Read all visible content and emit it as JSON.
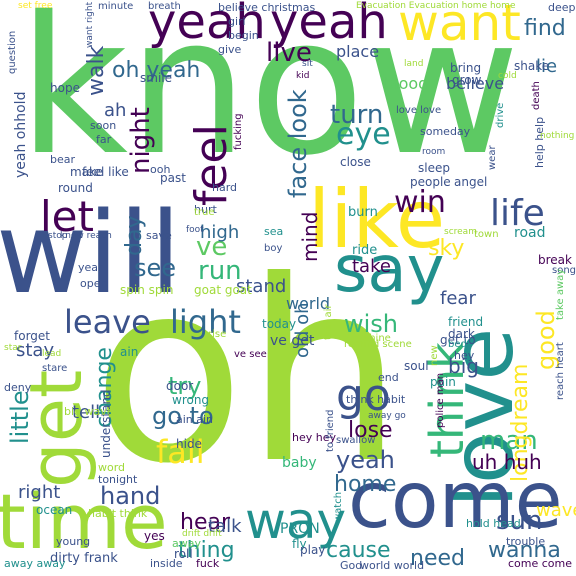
{
  "words": {
    "know": "know",
    "oh": "oh",
    "will": "will",
    "love": "love",
    "come": "come",
    "time": "time",
    "get": "get",
    "like": "like",
    "say": "say",
    "yeah1": "yeah",
    "yeah2": "yeah",
    "want": "want",
    "way": "way",
    "think": "think",
    "feel": "feel",
    "let": "let",
    "go": "go",
    "life": "life",
    "leave": "leave",
    "light": "light",
    "fall": "fall",
    "good": "good",
    "win": "win",
    "eye": "eye",
    "turn": "turn",
    "face_look": "face look",
    "live": "live",
    "night": "night",
    "walk": "walk",
    "oh_yeah": "oh yeah",
    "find": "find",
    "lie": "lie",
    "run": "run",
    "see": "see",
    "ve": "ve",
    "day": "day",
    "high": "high",
    "wish": "wish",
    "go_to": "go to",
    "try": "try",
    "lose": "lose",
    "yeah3": "yeah",
    "home": "home",
    "man": "man",
    "longdream": "longdream",
    "uh_huh": "uh huh",
    "need": "need",
    "wanna": "wanna",
    "cause": "cause",
    "thing": "thing",
    "hear": "hear",
    "hand": "hand",
    "change": "change",
    "little": "little",
    "right": "right",
    "sun": "sun",
    "mind": "mind",
    "take": "take",
    "sky": "sky",
    "stand": "stand",
    "blood": "blood",
    "believe": "believe",
    "place": "place",
    "world": "world",
    "fear": "fear",
    "big": "big",
    "talk": "talk",
    "wave": "wave",
    "old_oh": "old oh",
    "tell": "tell",
    "stay": "stay",
    "ah": "ah",
    "ohhold": "yeah ohhold",
    "baby": "baby",
    "road": "road",
    "burn": "burn",
    "ride": "ride",
    "break": "break",
    "spin_spin": "spin spin",
    "goat_goat": "goat goat",
    "ve_get": "ve get",
    "today": "today",
    "friend": "friend",
    "dark": "dark",
    "get_to": "get to",
    "end": "end",
    "soul": "soul",
    "pain": "pain",
    "understand": "understand",
    "hide": "hide",
    "PRON": "PRON",
    "ocean": "ocean",
    "dirty_frank": "dirty frank",
    "yes": "yes",
    "fly": "fly",
    "play": "play",
    "God": "God",
    "world_world": "world world",
    "trouble": "trouble",
    "come_come": "come come",
    "hold_head": "hold head",
    "inside": "inside",
    "fuck": "fuck",
    "young": "young",
    "roll": "roll",
    "away": "away",
    "away_away": "away away",
    "habit_think": "habit think",
    "big_wave": "big wave",
    "word": "word",
    "tonight": "tonight",
    "ain": "ain",
    "ain_ain": "ain ain",
    "wrong": "wrong",
    "door": "door",
    "hey": "hey",
    "hey_hey": "hey hey",
    "feel_like": "feel like",
    "ooh": "ooh",
    "round": "round",
    "make": "make",
    "bear": "bear",
    "past": "past",
    "hard": "hard",
    "hurt": "hurt",
    "true": "true",
    "save": "save",
    "year": "year",
    "open": "open",
    "sea": "sea",
    "boy": "boy",
    "close": "close",
    "sleep": "sleep",
    "people": "people",
    "angel": "angel",
    "wear": "wear",
    "drive": "drive",
    "death": "death",
    "deep": "deep",
    "help_help": "help help",
    "song": "song",
    "take_away": "take away",
    "town": "town",
    "scream": "scream",
    "shine": "shine",
    "thin_air": "thin air",
    "remind_scene": "remind scene",
    "think_habit": "think habit",
    "bed": "bed",
    "new": "new",
    "police_man": "police man",
    "reach_heart": "reach heart",
    "swallow": "swallow",
    "to_friend": "to friend",
    "away_go": "away go",
    "watch": "watch",
    "forget": "forget",
    "deny": "deny",
    "stare": "stare",
    "lead": "lead",
    "star": "star",
    "rise": "rise",
    "ve_see": "ve see",
    "smile": "smile",
    "hope": "hope",
    "soon": "soon",
    "far": "far",
    "give": "give",
    "girl": "girl",
    "begin": "begin",
    "believe_christmas": "believe christmas",
    "evacuation": "Evacuation Evacuation home home",
    "set_free": "set free",
    "minute": "minute",
    "breath": "breath",
    "question": "question",
    "want_right": "want right",
    "sit": "sit",
    "kid": "kid",
    "land": "land",
    "bring": "bring",
    "grow": "grow",
    "shake": "shake",
    "cold": "cold",
    "nothing": "nothing",
    "room": "room",
    "someday": "someday",
    "love_love": "love love",
    "fucking": "fucking",
    "know_reach": "know reach",
    "stop": "stop",
    "foot": "foot",
    "drift_drift": "drift drift"
  }
}
